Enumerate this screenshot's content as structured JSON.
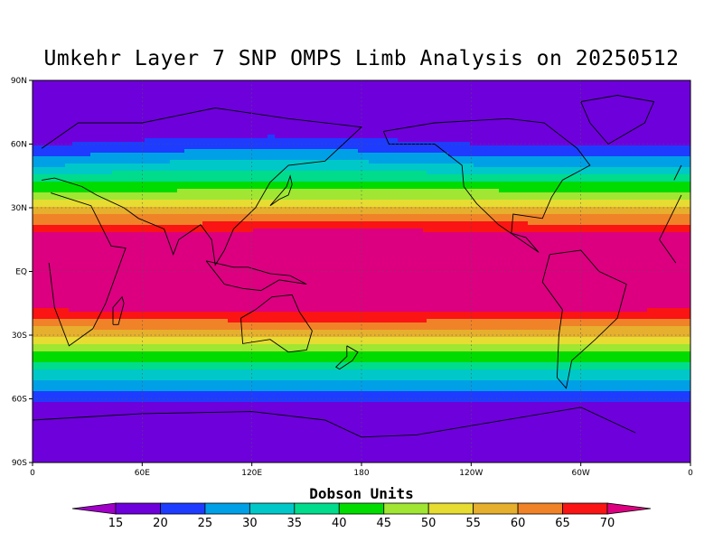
{
  "title": "Umkehr Layer 7 SNP OMPS Limb Analysis on 20250512",
  "axes": {
    "lat_labels": [
      "90N",
      "60N",
      "30N",
      "EQ",
      "30S",
      "60S",
      "90S"
    ],
    "lon_labels": [
      "0",
      "60E",
      "120E",
      "180",
      "120W",
      "60W",
      "0"
    ]
  },
  "colorbar": {
    "title": "Dobson Units",
    "levels": [
      "15",
      "20",
      "25",
      "30",
      "35",
      "40",
      "45",
      "50",
      "55",
      "60",
      "65",
      "70"
    ],
    "colors": [
      "#a000c8",
      "#6e00dc",
      "#1e3cff",
      "#00a0e6",
      "#00c8c8",
      "#00dc8c",
      "#00dc00",
      "#a0e632",
      "#e6dc32",
      "#e6af2d",
      "#f08228",
      "#fa1414",
      "#dc0080"
    ]
  },
  "palette_fill_order": [
    "#6e00dc",
    "#1e3cff",
    "#00a0e6",
    "#00c8c8",
    "#00dc8c",
    "#00dc00",
    "#a0e632",
    "#e6dc32",
    "#e6af2d",
    "#f08228",
    "#fa1414",
    "#dc0080"
  ]
}
